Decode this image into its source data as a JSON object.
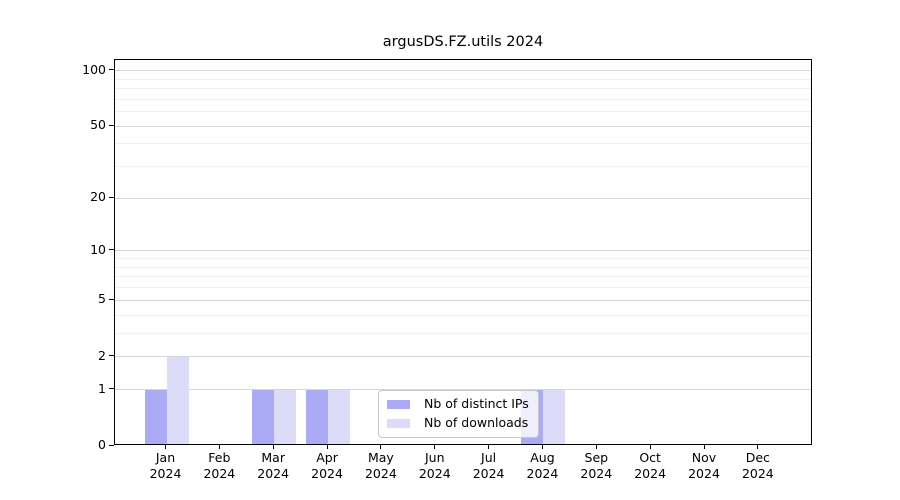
{
  "chart_data": {
    "type": "bar",
    "title": "argusDS.FZ.utils 2024",
    "categories": [
      "Jan",
      "Feb",
      "Mar",
      "Apr",
      "May",
      "Jun",
      "Jul",
      "Aug",
      "Sep",
      "Oct",
      "Nov",
      "Dec"
    ],
    "category_year": "2024",
    "series": [
      {
        "name": "Nb of distinct IPs",
        "color": "#ababf5",
        "values": [
          1,
          0,
          1,
          1,
          0,
          0,
          0,
          1,
          0,
          0,
          0,
          0
        ]
      },
      {
        "name": "Nb of downloads",
        "color": "#dcdcf8",
        "values": [
          2,
          0,
          1,
          1,
          0,
          0,
          0,
          1,
          0,
          0,
          0,
          0
        ]
      }
    ],
    "xlabel": "",
    "ylabel": "",
    "yscale": "log1p",
    "ylim": [
      0,
      114
    ],
    "yticks_major": [
      0,
      1,
      2,
      5,
      10,
      20,
      50,
      100
    ],
    "yticks_minor": [
      3,
      4,
      6,
      7,
      8,
      9,
      30,
      40,
      60,
      70,
      80,
      90
    ],
    "grid": true,
    "legend_position": "bottom-center-inside"
  },
  "colors": {
    "bar_distinct_ips": "#ababf5",
    "bar_downloads": "#dcdcf8",
    "grid_major": "#d7d7d7",
    "grid_minor": "#f1f1f1",
    "axis": "#000000",
    "text": "#000000",
    "legend_border": "#c8c8c8",
    "legend_bg": "rgba(255,255,255,0.8)"
  }
}
